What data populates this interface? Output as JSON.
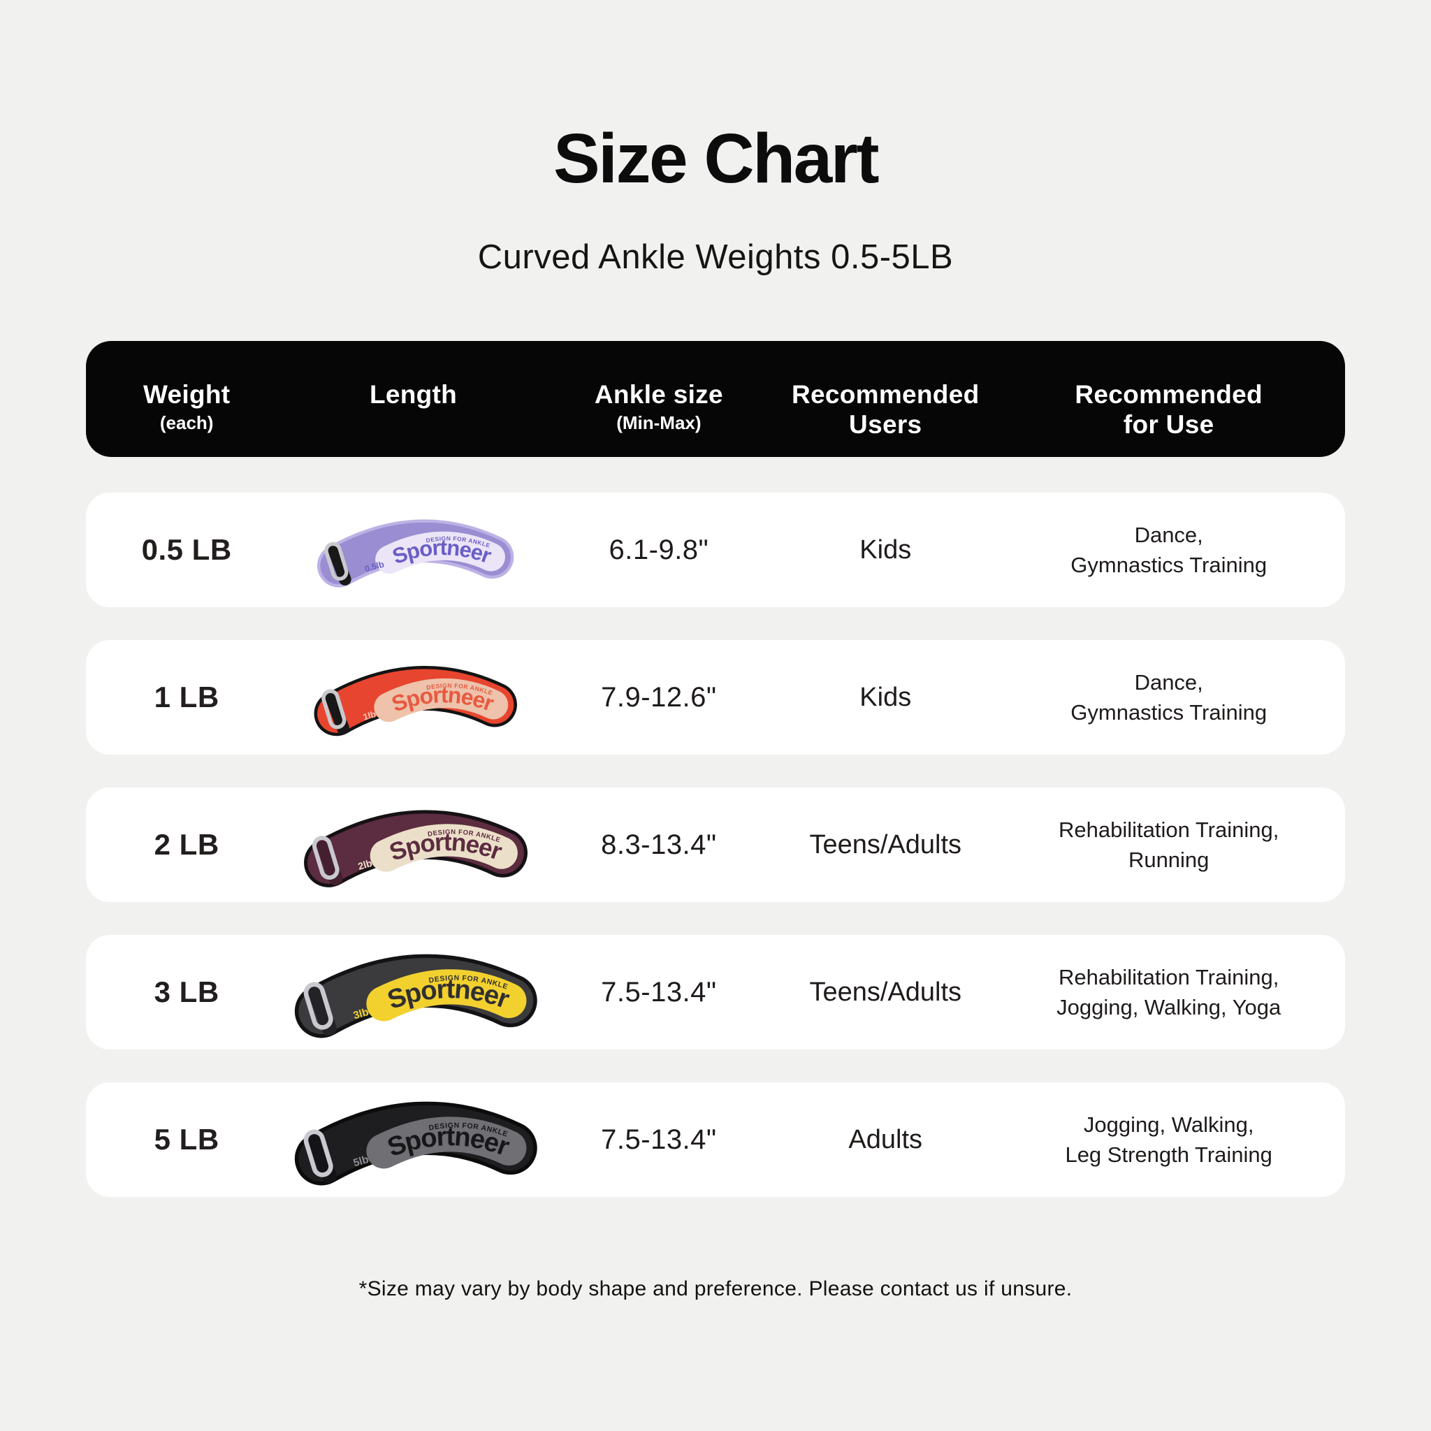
{
  "page": {
    "title": "Size Chart",
    "subtitle": "Curved Ankle Weights 0.5-5LB",
    "footnote": "*Size may vary by body shape and preference. Please contact us if unsure."
  },
  "theme": {
    "background": "#f1f1f0",
    "header_bg": "#060606",
    "header_text": "#ffffff",
    "card_bg": "#ffffff",
    "text": "#1e1b1a",
    "buckle_ring": "#c9c9cf"
  },
  "table": {
    "columns": [
      {
        "label": "Weight",
        "sub": "(each)"
      },
      {
        "label": "Length",
        "sub": ""
      },
      {
        "label": "Ankle size",
        "sub": "(Min-Max)"
      },
      {
        "label": "Recommended Users",
        "sub": ""
      },
      {
        "label": "Recommended for Use",
        "sub": ""
      }
    ],
    "rows": [
      {
        "weight": "0.5 LB",
        "ankle_size": "6.1-9.8\"",
        "users": "Kids",
        "use": "Dance,\nGymnastics Training",
        "product": {
          "name": "Sportneer",
          "tagline": "DESIGN FOR ANKLE",
          "weight_label": "0.5lb",
          "colors": {
            "band": "#9a8dd1",
            "trim": "#bdb1e6",
            "panel": "#ebe5f7",
            "logo": "#6a5ec6",
            "label": "#6a5ec6",
            "buckle_strap": "#181818"
          }
        }
      },
      {
        "weight": "1 LB",
        "ankle_size": "7.9-12.6\"",
        "users": "Kids",
        "use": "Dance,\nGymnastics Training",
        "product": {
          "name": "Sportneer",
          "tagline": "DESIGN FOR ANKLE",
          "weight_label": "1lb",
          "colors": {
            "band": "#e7452f",
            "trim": "#141414",
            "panel": "#eec2ab",
            "logo": "#e75a40",
            "label": "#f3cdb9",
            "buckle_strap": "#181818"
          }
        }
      },
      {
        "weight": "2 LB",
        "ankle_size": "8.3-13.4\"",
        "users": "Teens/Adults",
        "use": "Rehabilitation Training,\nRunning",
        "product": {
          "name": "Sportneer",
          "tagline": "DESIGN FOR ANKLE",
          "weight_label": "2lb",
          "colors": {
            "band": "#5c2c40",
            "trim": "#161114",
            "panel": "#ecdfc9",
            "logo": "#5c2c40",
            "label": "#ecdfc9",
            "buckle_strap": "#44202f"
          }
        }
      },
      {
        "weight": "3 LB",
        "ankle_size": "7.5-13.4\"",
        "users": "Teens/Adults",
        "use": "Rehabilitation Training,\nJogging, Walking, Yoga",
        "product": {
          "name": "Sportneer",
          "tagline": "DESIGN FOR ANKLE",
          "weight_label": "3lb",
          "colors": {
            "band": "#3b3b3e",
            "trim": "#131315",
            "panel": "#f2d12f",
            "logo": "#302f31",
            "label": "#f2d12f",
            "buckle_strap": "#232325"
          }
        }
      },
      {
        "weight": "5 LB",
        "ankle_size": "7.5-13.4\"",
        "users": "Adults",
        "use": "Jogging, Walking,\nLeg Strength Training",
        "product": {
          "name": "Sportneer",
          "tagline": "DESIGN FOR ANKLE",
          "weight_label": "5lb",
          "colors": {
            "band": "#1e1e21",
            "trim": "#0c0c0d",
            "panel": "#6f6f74",
            "logo": "#17171a",
            "label": "#8f8f95",
            "buckle_strap": "#141417"
          }
        }
      }
    ]
  }
}
